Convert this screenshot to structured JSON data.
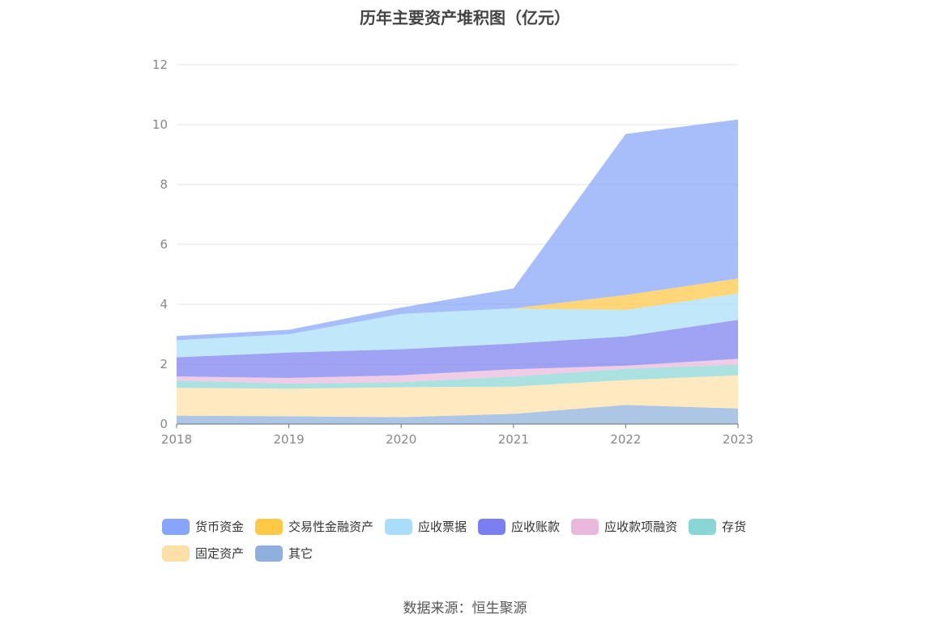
{
  "chart_data": {
    "type": "area",
    "title": "历年主要资产堆积图（亿元）",
    "categories": [
      "2018",
      "2019",
      "2020",
      "2021",
      "2022",
      "2023"
    ],
    "yticks": [
      "0",
      "2",
      "4",
      "6",
      "8",
      "10",
      "12"
    ],
    "ylim": [
      0,
      12
    ],
    "stacked": true,
    "grid": true,
    "legend_position": "bottom",
    "series": [
      {
        "name": "其它",
        "color": "#8fb0dc",
        "values": [
          0.28,
          0.26,
          0.23,
          0.34,
          0.64,
          0.52
        ]
      },
      {
        "name": "固定资产",
        "color": "#fde0a8",
        "values": [
          0.93,
          0.92,
          1.0,
          0.91,
          0.83,
          1.11
        ]
      },
      {
        "name": "存货",
        "color": "#8ad6d6",
        "values": [
          0.24,
          0.17,
          0.17,
          0.34,
          0.38,
          0.35
        ]
      },
      {
        "name": "应收款项融资",
        "color": "#eab8dc",
        "values": [
          0.14,
          0.19,
          0.23,
          0.24,
          0.1,
          0.2
        ]
      },
      {
        "name": "应收账款",
        "color": "#7b7ef0",
        "values": [
          0.64,
          0.85,
          0.87,
          0.86,
          0.98,
          1.3
        ]
      },
      {
        "name": "应收票据",
        "color": "#a9defa",
        "values": [
          0.57,
          0.61,
          1.18,
          1.17,
          0.88,
          0.88
        ]
      },
      {
        "name": "交易性金融资产",
        "color": "#ffc845",
        "values": [
          0.0,
          0.0,
          0.0,
          0.0,
          0.5,
          0.5
        ]
      },
      {
        "name": "货币资金",
        "color": "#87a5fa",
        "values": [
          0.14,
          0.15,
          0.21,
          0.67,
          5.38,
          5.31
        ]
      }
    ]
  },
  "legend_order": [
    "货币资金",
    "交易性金融资产",
    "应收票据",
    "应收账款",
    "应收款项融资",
    "存货",
    "固定资产",
    "其它"
  ],
  "source": "数据来源：恒生聚源"
}
